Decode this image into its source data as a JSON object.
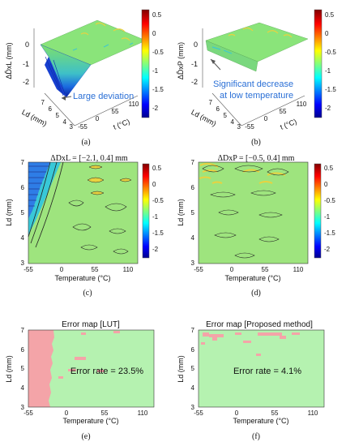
{
  "colors": {
    "lut_error": "#f4a4a8",
    "ok_region": "#b5f2b0",
    "contour_green": "#8ee07a",
    "callout_text": "#2a6fd6"
  },
  "chart_data": [
    {
      "panel": "(a)",
      "type": "surface3d",
      "zlabel": "ΔD̂xL (mm)",
      "xlabel": "Ld (mm)",
      "ylabel": "t (°C)",
      "z_ticks": [
        "0",
        "-1",
        "-2"
      ],
      "x_ticks": [
        "3",
        "4",
        "5",
        "6",
        "7"
      ],
      "y_ticks": [
        "-55",
        "0",
        "55",
        "110"
      ],
      "annotation": "Large deviation",
      "colorbar": {
        "range": [
          -2.2,
          0.7
        ],
        "ticks": [
          "0.5",
          "0",
          "-0.5",
          "-1",
          "-1.5",
          "-2"
        ]
      }
    },
    {
      "panel": "(b)",
      "type": "surface3d",
      "zlabel": "ΔD̂xP (mm)",
      "xlabel": "Ld (mm)",
      "ylabel": "t (°C)",
      "z_ticks": [
        "0",
        "-1",
        "-2"
      ],
      "x_ticks": [
        "3",
        "4",
        "5",
        "6",
        "7"
      ],
      "y_ticks": [
        "-55",
        "0",
        "55",
        "110"
      ],
      "annotation": [
        "Significant decrease",
        "at low temperature"
      ],
      "colorbar": {
        "range": [
          -2.2,
          0.7
        ],
        "ticks": [
          "0.5",
          "0",
          "-0.5",
          "-1",
          "-1.5",
          "-2"
        ]
      }
    },
    {
      "panel": "(c)",
      "type": "contour",
      "title": "ΔDxL = [−2.1, 0.4] mm",
      "xlabel": "Temperature (°C)",
      "ylabel": "Ld (mm)",
      "xlim": [
        -55,
        125
      ],
      "ylim": [
        3,
        7
      ],
      "x_ticks": [
        "-55",
        "0",
        "55",
        "110"
      ],
      "y_ticks": [
        "3",
        "4",
        "5",
        "6",
        "7"
      ],
      "value_range": [
        -2.1,
        0.4
      ],
      "colorbar": {
        "range": [
          -2.2,
          0.7
        ],
        "ticks": [
          "0.5",
          "0",
          "-0.5",
          "-1",
          "-1.5",
          "-2"
        ]
      }
    },
    {
      "panel": "(d)",
      "type": "contour",
      "title": "ΔDxP = [−0.5, 0.4] mm",
      "xlabel": "Temperature (°C)",
      "ylabel": "Ld (mm)",
      "xlim": [
        -55,
        125
      ],
      "ylim": [
        3,
        7
      ],
      "x_ticks": [
        "-55",
        "0",
        "55",
        "110"
      ],
      "y_ticks": [
        "3",
        "4",
        "5",
        "6",
        "7"
      ],
      "value_range": [
        -0.5,
        0.4
      ],
      "colorbar": {
        "range": [
          -2.2,
          0.7
        ],
        "ticks": [
          "0.5",
          "0",
          "-0.5",
          "-1",
          "-1.5",
          "-2"
        ]
      }
    },
    {
      "panel": "(e)",
      "type": "heatmap",
      "title": "Error map [LUT]",
      "xlabel": "Temperature (°C)",
      "ylabel": "Ld (mm)",
      "xlim": [
        -55,
        125
      ],
      "ylim": [
        3,
        7
      ],
      "x_ticks": [
        "-55",
        "0",
        "55",
        "110"
      ],
      "y_ticks": [
        "3",
        "4",
        "5",
        "6",
        "7"
      ],
      "error_rate_text": "Error rate = 23.5%",
      "error_rate": 23.5
    },
    {
      "panel": "(f)",
      "type": "heatmap",
      "title": "Error map [Proposed method]",
      "xlabel": "Temperature (°C)",
      "ylabel": "Ld (mm)",
      "xlim": [
        -55,
        125
      ],
      "ylim": [
        3,
        7
      ],
      "x_ticks": [
        "-55",
        "0",
        "55",
        "110"
      ],
      "y_ticks": [
        "3",
        "4",
        "5",
        "6",
        "7"
      ],
      "error_rate_text": "Error rate = 4.1%",
      "error_rate": 4.1
    }
  ]
}
